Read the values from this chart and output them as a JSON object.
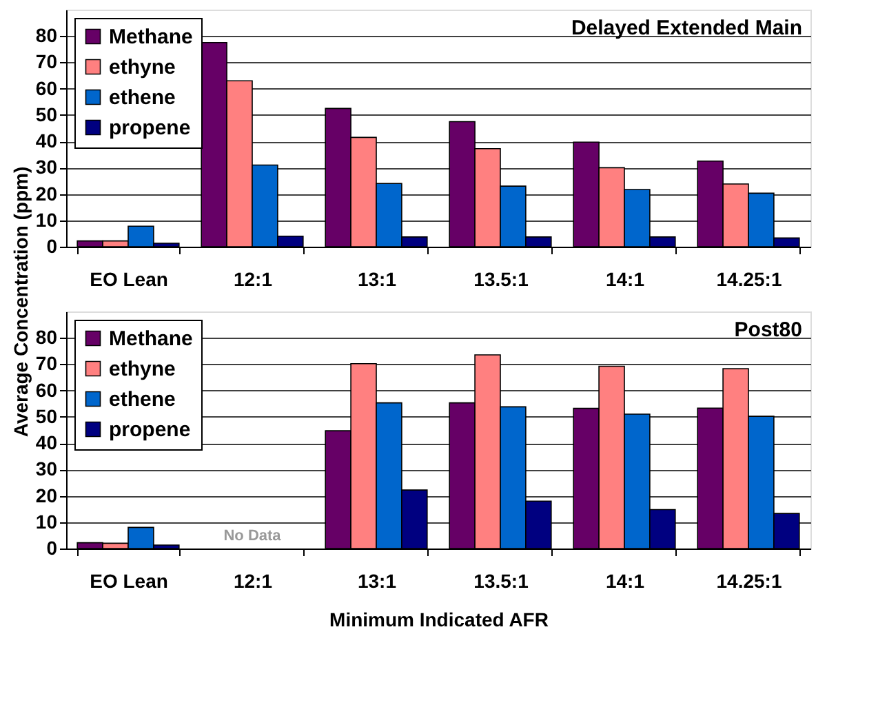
{
  "chart_data": [
    {
      "type": "bar",
      "title": "Delayed Extended Main",
      "ylabel": "Average Concentration (ppm)",
      "categories": [
        "EO Lean",
        "12:1",
        "13:1",
        "13.5:1",
        "14:1",
        "14.25:1"
      ],
      "series": [
        {
          "name": "Methane",
          "color": "#660066",
          "values": [
            2.2,
            77.5,
            52.5,
            47.5,
            39.7,
            32.5
          ]
        },
        {
          "name": "ethyne",
          "color": "#ff8080",
          "values": [
            2.2,
            63,
            41.5,
            37.2,
            30,
            23.8
          ]
        },
        {
          "name": "ethene",
          "color": "#0066cc",
          "values": [
            7.8,
            31,
            24,
            23,
            21.7,
            20.3
          ]
        },
        {
          "name": "propene",
          "color": "#000080",
          "values": [
            1.3,
            4,
            3.7,
            3.7,
            3.7,
            3.3
          ]
        }
      ],
      "ylim": [
        0,
        90
      ],
      "yticks": [
        0,
        10,
        20,
        30,
        40,
        50,
        60,
        70,
        80
      ],
      "grid": "y",
      "legend": "top left"
    },
    {
      "type": "bar",
      "title": "Post80",
      "xlabel": "Minimum Indicated AFR",
      "categories": [
        "EO Lean",
        "12:1",
        "13:1",
        "13.5:1",
        "14:1",
        "14.25:1"
      ],
      "series": [
        {
          "name": "Methane",
          "color": "#660066",
          "values": [
            2.2,
            null,
            44.7,
            55.3,
            53.2,
            53.3
          ]
        },
        {
          "name": "ethyne",
          "color": "#ff8080",
          "values": [
            2,
            null,
            70.2,
            73.5,
            69.2,
            68.3
          ]
        },
        {
          "name": "ethene",
          "color": "#0066cc",
          "values": [
            8,
            null,
            55.3,
            53.8,
            51,
            50.2
          ]
        },
        {
          "name": "propene",
          "color": "#000080",
          "values": [
            1.3,
            null,
            22.2,
            18,
            14.8,
            13.3
          ]
        }
      ],
      "annotations": [
        "No Data"
      ],
      "ylim": [
        0,
        90
      ],
      "yticks": [
        0,
        10,
        20,
        30,
        40,
        50,
        60,
        70,
        80
      ],
      "grid": "y",
      "legend": "top left"
    }
  ]
}
